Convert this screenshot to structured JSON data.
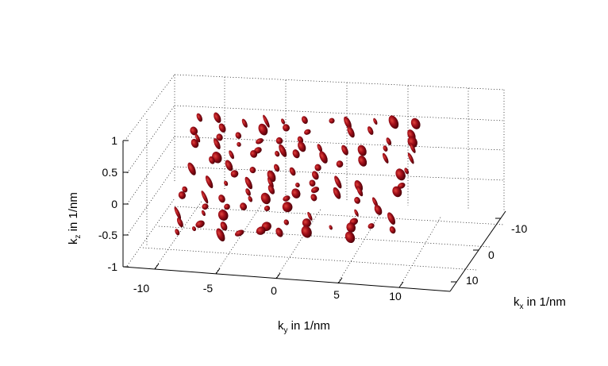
{
  "chart_data": {
    "type": "isosurface-3d",
    "title": "",
    "xlabel": {
      "main": "k",
      "sub": "x",
      "rest": " in 1/nm"
    },
    "ylabel": {
      "main": "k",
      "sub": "y",
      "rest": " in 1/nm"
    },
    "zlabel": {
      "main": "k",
      "sub": "z",
      "rest": " in 1/nm"
    },
    "xlim": [
      -15,
      15
    ],
    "ylim": [
      -13,
      15
    ],
    "zlim": [
      -1,
      1
    ],
    "x_ticks": [
      "-10",
      "0",
      "10"
    ],
    "y_ticks": [
      "-10",
      "-5",
      "0",
      "5",
      "10"
    ],
    "z_ticks": [
      "-1",
      "-0.5",
      "0",
      "0.5",
      "1"
    ],
    "grid": true,
    "surface_color": "#8b0000",
    "blob_rows_approx_ky": [
      -10,
      -8,
      -6,
      -4,
      -2,
      0,
      2,
      4,
      6,
      8,
      10
    ]
  }
}
